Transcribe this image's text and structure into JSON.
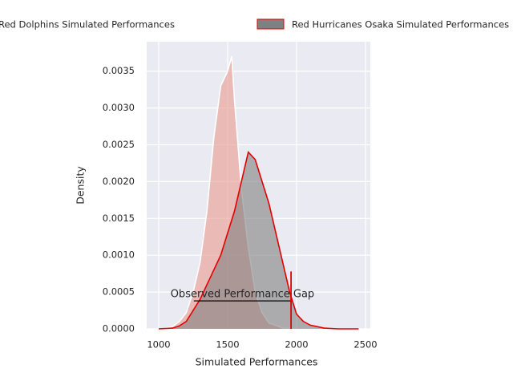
{
  "chart_data": {
    "type": "kde",
    "xlabel": "Simulated Performances",
    "ylabel": "Density",
    "xlim": [
      913,
      2535
    ],
    "ylim": [
      0,
      0.0039
    ],
    "xticks": [
      1000,
      1500,
      2000,
      2500
    ],
    "yticks": [
      {
        "value": 0,
        "label": "0.0000"
      },
      {
        "value": 0.0005,
        "label": "0.0005"
      },
      {
        "value": 0.001,
        "label": "0.0010"
      },
      {
        "value": 0.0015,
        "label": "0.0015"
      },
      {
        "value": 0.002,
        "label": "0.0020"
      },
      {
        "value": 0.0025,
        "label": "0.0025"
      },
      {
        "value": 0.003,
        "label": "0.0030"
      },
      {
        "value": 0.0035,
        "label": "0.0035"
      }
    ],
    "grid": true,
    "series": [
      {
        "name": "Red Dolphins Simulated Performances",
        "color": "#e8998d",
        "edgecolor": "#ffffff",
        "x": [
          1050,
          1100,
          1150,
          1200,
          1250,
          1300,
          1350,
          1400,
          1450,
          1500,
          1530,
          1550,
          1600,
          1650,
          1700,
          1750,
          1800,
          1900,
          2000
        ],
        "values": [
          1e-05,
          3e-05,
          0.0001,
          0.00022,
          0.0005,
          0.0009,
          0.0016,
          0.0026,
          0.0033,
          0.0035,
          0.0037,
          0.0031,
          0.0019,
          0.0011,
          0.0005,
          0.00022,
          8e-05,
          1e-05,
          0
        ]
      },
      {
        "name": "Red Hurricanes Osaka Simulated Performances",
        "color": "#808080",
        "edgecolor": "#e50000",
        "x": [
          1000,
          1100,
          1150,
          1200,
          1250,
          1300,
          1350,
          1400,
          1450,
          1500,
          1550,
          1600,
          1650,
          1700,
          1750,
          1800,
          1850,
          1900,
          1950,
          2000,
          2050,
          2100,
          2200,
          2300,
          2450
        ],
        "values": [
          0,
          1e-05,
          4e-05,
          0.0001,
          0.00025,
          0.0004,
          0.0006,
          0.0008,
          0.001,
          0.0013,
          0.0016,
          0.002,
          0.0024,
          0.0023,
          0.002,
          0.0017,
          0.0013,
          0.0009,
          0.0005,
          0.0002,
          0.0001,
          5e-05,
          1e-05,
          0,
          0
        ]
      }
    ],
    "annotation": {
      "text": "Observed Performance Gap",
      "x": [
        1255,
        1960
      ],
      "y": 0.00038,
      "marker_height": 0.00078
    }
  }
}
